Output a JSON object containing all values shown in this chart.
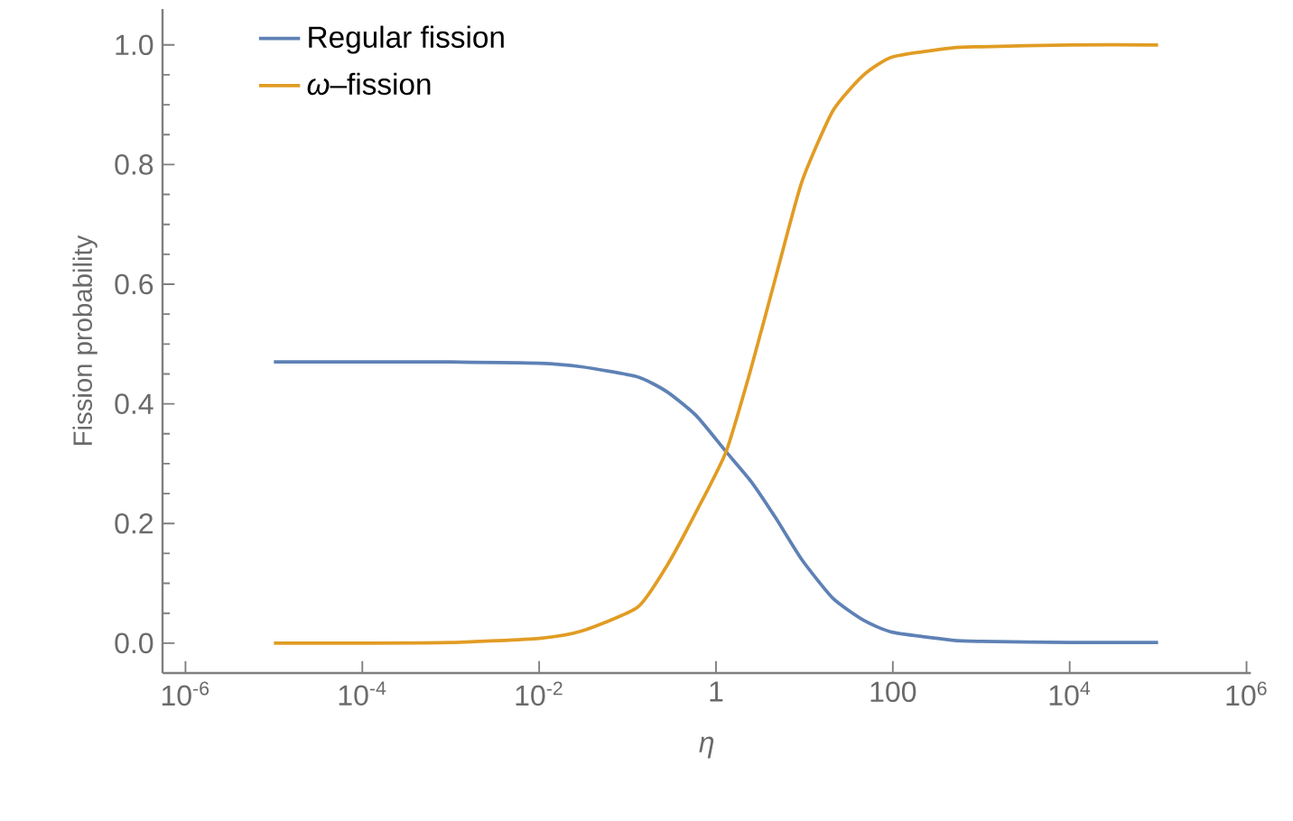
{
  "chart_data": {
    "type": "line",
    "xlabel": "η",
    "ylabel": "Fission probability",
    "log": "x",
    "legend": "top left",
    "grid": false,
    "marker": "none",
    "line_style": "solid",
    "xlim": [
      5.5e-07,
      1120000.0
    ],
    "ylim": [
      -0.05,
      1.06
    ],
    "xticks": [
      {
        "value": 1e-06,
        "label": "10$^{-6}$"
      },
      {
        "value": 0.0001,
        "label": "10$^{-4}$"
      },
      {
        "value": 0.01,
        "label": "10$^{-2}$"
      },
      1,
      100,
      {
        "value": 10000.0,
        "label": "10$^{4}$"
      },
      {
        "value": 1000000.0,
        "label": "10$^{6}$"
      }
    ],
    "yticks": [
      {
        "value": 0,
        "label": "0.0"
      },
      {
        "value": 0.2,
        "label": "0.2"
      },
      {
        "value": 0.4,
        "label": "0.4"
      },
      {
        "value": 0.6,
        "label": "0.6"
      },
      {
        "value": 0.8,
        "label": "0.8"
      },
      {
        "value": 1,
        "label": "1.0"
      }
    ],
    "series": [
      {
        "name": "Regular fission",
        "color": "#5e81b5",
        "x": [
          1e-05,
          0.0001,
          0.001,
          0.01,
          0.03,
          0.13,
          0.28,
          0.6,
          1.3,
          2.5,
          4.7,
          9.3,
          21,
          47,
          100,
          470,
          1000.0,
          10000.0,
          100000.0
        ],
        "values": [
          0.47,
          0.47,
          0.47,
          0.468,
          0.462,
          0.445,
          0.42,
          0.38,
          0.32,
          0.27,
          0.21,
          0.14,
          0.075,
          0.038,
          0.018,
          0.005,
          0.003,
          0.001,
          0.001
        ]
      },
      {
        "name": "*ω*–fission",
        "color": "#e19c24",
        "x": [
          1e-05,
          0.0001,
          0.001,
          0.01,
          0.03,
          0.13,
          0.28,
          0.6,
          1.3,
          2.5,
          4.7,
          9.3,
          21,
          47,
          100,
          470,
          1000.0,
          10000.0,
          100000.0
        ],
        "values": [
          0,
          0,
          0.001,
          0.008,
          0.02,
          0.06,
          0.13,
          0.22,
          0.32,
          0.46,
          0.61,
          0.77,
          0.89,
          0.95,
          0.98,
          0.995,
          0.997,
          1,
          1
        ]
      }
    ]
  }
}
